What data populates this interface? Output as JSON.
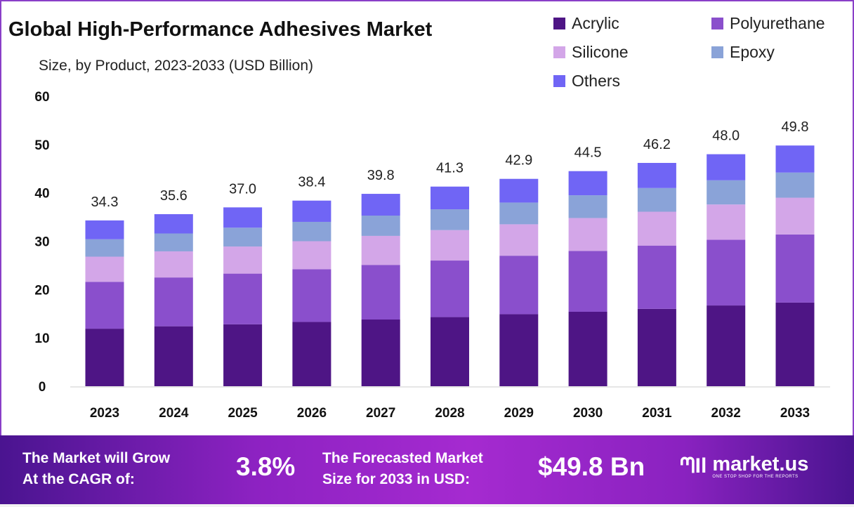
{
  "chart_data": {
    "type": "bar",
    "stacked": true,
    "title": "Global High-Performance Adhesives Market",
    "subtitle": "Size, by Product, 2023-2033 (USD Billion)",
    "xlabel": "",
    "ylabel": "",
    "ylim": [
      0,
      60
    ],
    "yticks": [
      "0",
      "10",
      "20",
      "30",
      "40",
      "50",
      "60"
    ],
    "grid": false,
    "legend_position": "top-right",
    "categories": [
      "2023",
      "2024",
      "2025",
      "2026",
      "2027",
      "2028",
      "2029",
      "2030",
      "2031",
      "2032",
      "2033"
    ],
    "totals": [
      "34.3",
      "35.6",
      "37.0",
      "38.4",
      "39.8",
      "41.3",
      "42.9",
      "44.5",
      "46.2",
      "48.0",
      "49.8"
    ],
    "series": [
      {
        "name": "Acrylic",
        "color": "#4e1585",
        "values": [
          11.9,
          12.4,
          12.8,
          13.3,
          13.8,
          14.3,
          14.9,
          15.4,
          16.0,
          16.7,
          17.3
        ]
      },
      {
        "name": "Polyurethane",
        "color": "#8a4fcc",
        "values": [
          9.7,
          10.1,
          10.5,
          10.9,
          11.3,
          11.7,
          12.1,
          12.6,
          13.1,
          13.6,
          14.1
        ]
      },
      {
        "name": "Silicone",
        "color": "#d3a6e8",
        "values": [
          5.2,
          5.4,
          5.6,
          5.8,
          6.0,
          6.3,
          6.5,
          6.8,
          7.0,
          7.3,
          7.6
        ]
      },
      {
        "name": "Epoxy",
        "color": "#8aa3d8",
        "values": [
          3.6,
          3.7,
          3.9,
          4.0,
          4.2,
          4.3,
          4.5,
          4.7,
          4.9,
          5.0,
          5.2
        ]
      },
      {
        "name": "Others",
        "color": "#7065f5",
        "values": [
          3.9,
          4.0,
          4.2,
          4.4,
          4.5,
          4.7,
          4.9,
          5.0,
          5.2,
          5.4,
          5.6
        ]
      }
    ]
  },
  "footer": {
    "cagr_label_1": "The Market will Grow",
    "cagr_label_2": "At the CAGR of:",
    "cagr_value": "3.8%",
    "forecast_label_1": "The Forecasted Market",
    "forecast_label_2": "Size for 2033 in USD:",
    "forecast_value": "$49.8 Bn",
    "logo_name": "market.us",
    "logo_tagline": "ONE STOP SHOP FOR THE REPORTS"
  }
}
